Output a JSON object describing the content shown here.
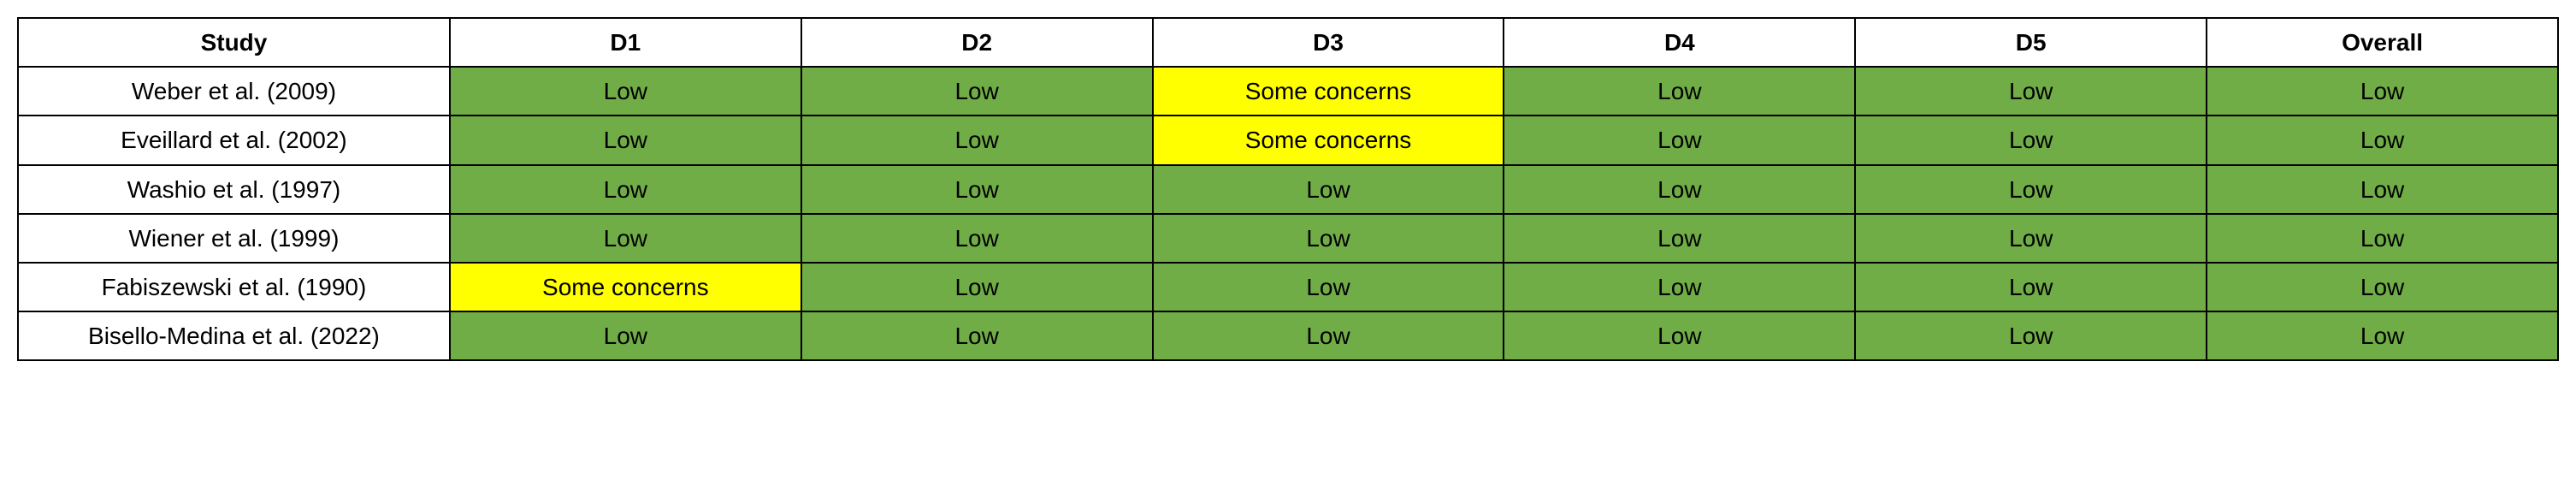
{
  "table": {
    "type": "table",
    "background_color": "#ffffff",
    "border_color": "#000000",
    "font_family": "Arial",
    "header_fontsize": 28,
    "cell_fontsize": 28,
    "risk_colors": {
      "Low": "#70ad47",
      "Some concerns": "#ffff00"
    },
    "columns": [
      {
        "key": "study",
        "label": "Study"
      },
      {
        "key": "d1",
        "label": "D1"
      },
      {
        "key": "d2",
        "label": "D2"
      },
      {
        "key": "d3",
        "label": "D3"
      },
      {
        "key": "d4",
        "label": "D4"
      },
      {
        "key": "d5",
        "label": "D5"
      },
      {
        "key": "overall",
        "label": "Overall"
      }
    ],
    "rows": [
      {
        "study": "Weber et al. (2009)",
        "d1": "Low",
        "d2": "Low",
        "d3": "Some concerns",
        "d4": "Low",
        "d5": "Low",
        "overall": "Low"
      },
      {
        "study": "Eveillard et al. (2002)",
        "d1": "Low",
        "d2": "Low",
        "d3": "Some concerns",
        "d4": "Low",
        "d5": "Low",
        "overall": "Low"
      },
      {
        "study": "Washio et al. (1997)",
        "d1": "Low",
        "d2": "Low",
        "d3": "Low",
        "d4": "Low",
        "d5": "Low",
        "overall": "Low"
      },
      {
        "study": "Wiener et al. (1999)",
        "d1": "Low",
        "d2": "Low",
        "d3": "Low",
        "d4": "Low",
        "d5": "Low",
        "overall": "Low"
      },
      {
        "study": "Fabiszewski et al. (1990)",
        "d1": "Some concerns",
        "d2": "Low",
        "d3": "Low",
        "d4": "Low",
        "d5": "Low",
        "overall": "Low"
      },
      {
        "study": "Bisello-Medina et al. (2022)",
        "d1": "Low",
        "d2": "Low",
        "d3": "Low",
        "d4": "Low",
        "d5": "Low",
        "overall": "Low"
      }
    ]
  }
}
